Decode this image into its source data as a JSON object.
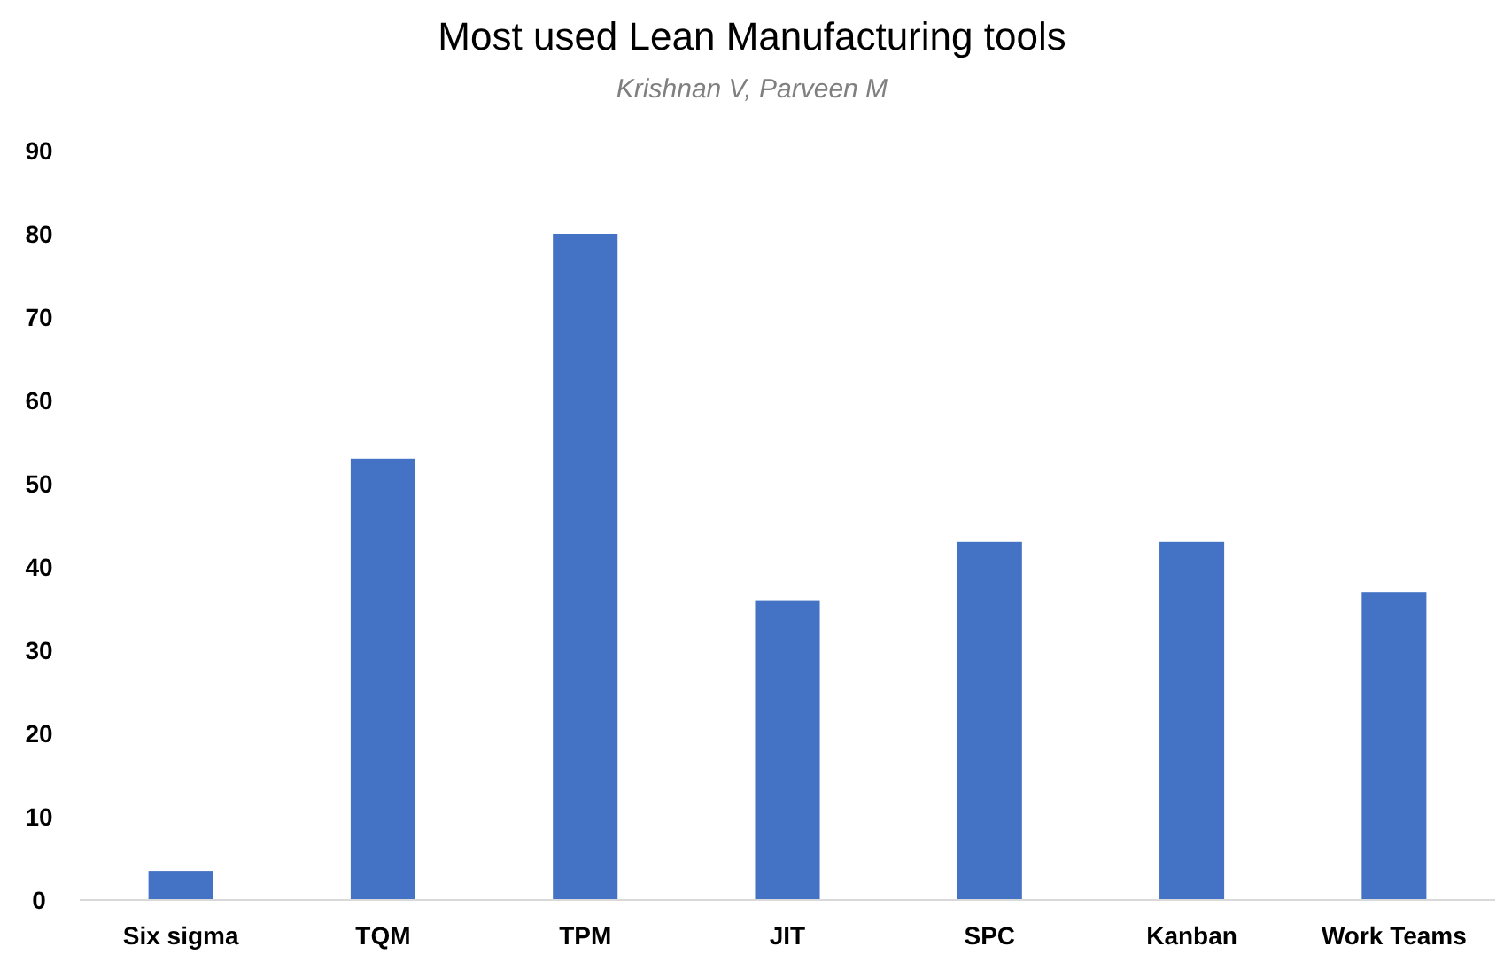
{
  "chart_data": {
    "type": "bar",
    "title": "Most used Lean Manufacturing tools",
    "subtitle": "Krishnan V, Parveen M",
    "categories": [
      "Six sigma",
      "TQM",
      "TPM",
      "JIT",
      "SPC",
      "Kanban",
      "Work Teams"
    ],
    "values": [
      3.5,
      53,
      80,
      36,
      43,
      43,
      37
    ],
    "color": "#4472c4",
    "ylim": [
      0,
      90
    ],
    "yticks": [
      0,
      10,
      20,
      30,
      40,
      50,
      60,
      70,
      80,
      90
    ],
    "grid": false
  }
}
